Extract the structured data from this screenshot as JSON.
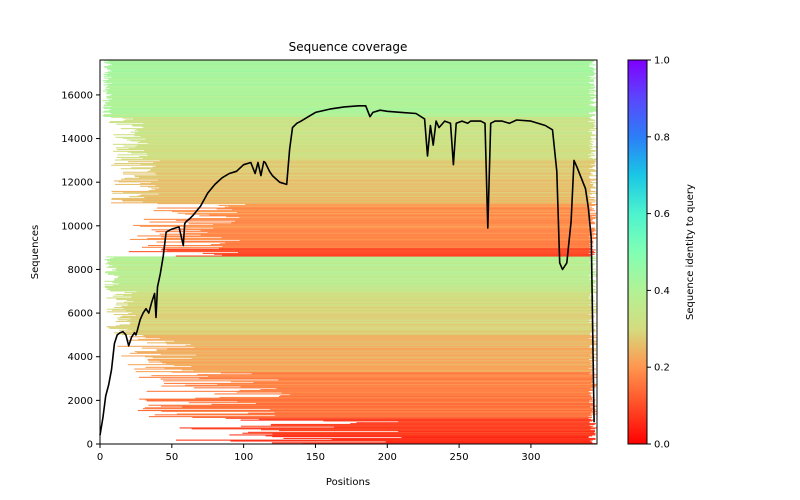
{
  "chart_data": {
    "type": "heatmap",
    "title": "Sequence coverage",
    "xlabel": "Positions",
    "ylabel": "Sequences",
    "xlim": [
      0,
      346
    ],
    "ylim": [
      0,
      17600
    ],
    "xticks": [
      0,
      50,
      100,
      150,
      200,
      250,
      300
    ],
    "yticks": [
      0,
      2000,
      4000,
      6000,
      8000,
      10000,
      12000,
      14000,
      16000
    ],
    "grid": false,
    "colorbar": {
      "label": "Sequence identity to query",
      "colormap": "rainbow_r",
      "range": [
        0,
        1
      ],
      "ticks": [
        "0.0",
        "0.2",
        "0.4",
        "0.6",
        "0.8",
        "1.0"
      ]
    },
    "heatmap_bands": [
      {
        "y_range": [
          0,
          1200
        ],
        "x_start_typical": 130,
        "identity": 0.06
      },
      {
        "y_range": [
          1200,
          3300
        ],
        "x_start_typical": 80,
        "identity": 0.15
      },
      {
        "y_range": [
          3300,
          5000
        ],
        "x_start_typical": 40,
        "identity": 0.22
      },
      {
        "y_range": [
          5000,
          7000
        ],
        "x_start_typical": 15,
        "identity": 0.28
      },
      {
        "y_range": [
          7000,
          8600
        ],
        "x_start_typical": 8,
        "identity": 0.36
      },
      {
        "y_range": [
          8600,
          9000
        ],
        "x_start_typical": 60,
        "identity": 0.08
      },
      {
        "y_range": [
          9000,
          11000
        ],
        "x_start_typical": 60,
        "identity": 0.17
      },
      {
        "y_range": [
          11000,
          13000
        ],
        "x_start_typical": 25,
        "identity": 0.25
      },
      {
        "y_range": [
          13000,
          15000
        ],
        "x_start_typical": 20,
        "identity": 0.31
      },
      {
        "y_range": [
          15000,
          17600
        ],
        "x_start_typical": 5,
        "identity": 0.4
      }
    ],
    "series": [
      {
        "name": "coverage",
        "color": "#000000",
        "x": [
          0,
          2,
          4,
          6,
          8,
          10,
          12,
          14,
          16,
          18,
          20,
          22,
          24,
          25,
          26,
          28,
          30,
          32,
          34,
          36,
          38,
          39,
          40,
          42,
          44,
          46,
          47,
          50,
          55,
          58,
          59,
          60,
          62,
          65,
          70,
          75,
          80,
          85,
          90,
          95,
          100,
          105,
          108,
          110,
          112,
          114,
          115,
          118,
          120,
          125,
          130,
          132,
          134,
          137,
          140,
          145,
          150,
          160,
          170,
          180,
          185,
          188,
          190,
          195,
          200,
          210,
          220,
          226,
          228,
          230,
          232,
          234,
          236,
          240,
          244,
          246,
          248,
          252,
          256,
          258,
          260,
          265,
          268,
          270,
          272,
          275,
          280,
          285,
          290,
          300,
          310,
          315,
          318,
          320,
          322,
          325,
          328,
          330,
          332,
          335,
          338,
          340,
          342,
          344
        ],
        "y": [
          400,
          1200,
          2200,
          2700,
          3400,
          4600,
          5000,
          5100,
          5150,
          5000,
          4500,
          4900,
          5100,
          5000,
          5200,
          5700,
          6000,
          6200,
          6000,
          6500,
          6900,
          5800,
          7200,
          7800,
          8600,
          9700,
          9750,
          9850,
          9950,
          9100,
          10100,
          10200,
          10300,
          10500,
          10900,
          11500,
          11900,
          12200,
          12400,
          12500,
          12800,
          12900,
          12400,
          12900,
          12300,
          12950,
          12900,
          12500,
          12300,
          12000,
          11900,
          13500,
          14500,
          14700,
          14800,
          15000,
          15200,
          15350,
          15450,
          15500,
          15500,
          15000,
          15200,
          15300,
          15250,
          15200,
          15150,
          14900,
          13200,
          14600,
          13700,
          14800,
          14500,
          14800,
          14700,
          12800,
          14700,
          14800,
          14700,
          14800,
          14800,
          14800,
          14700,
          9900,
          14700,
          14800,
          14800,
          14700,
          14850,
          14800,
          14600,
          14400,
          12500,
          8300,
          8000,
          8300,
          10200,
          13000,
          12700,
          12200,
          11700,
          10800,
          9400,
          1000
        ]
      }
    ]
  }
}
